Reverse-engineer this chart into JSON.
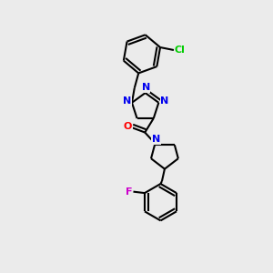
{
  "bg_color": "#ebebeb",
  "bond_color": "#000000",
  "bond_width": 1.5,
  "atom_colors": {
    "N": "#0000ee",
    "O": "#ff0000",
    "Cl": "#00cc00",
    "F": "#cc00cc",
    "C": "#000000"
  },
  "font_size": 8,
  "fig_width": 3.0,
  "fig_height": 3.0,
  "dpi": 100
}
